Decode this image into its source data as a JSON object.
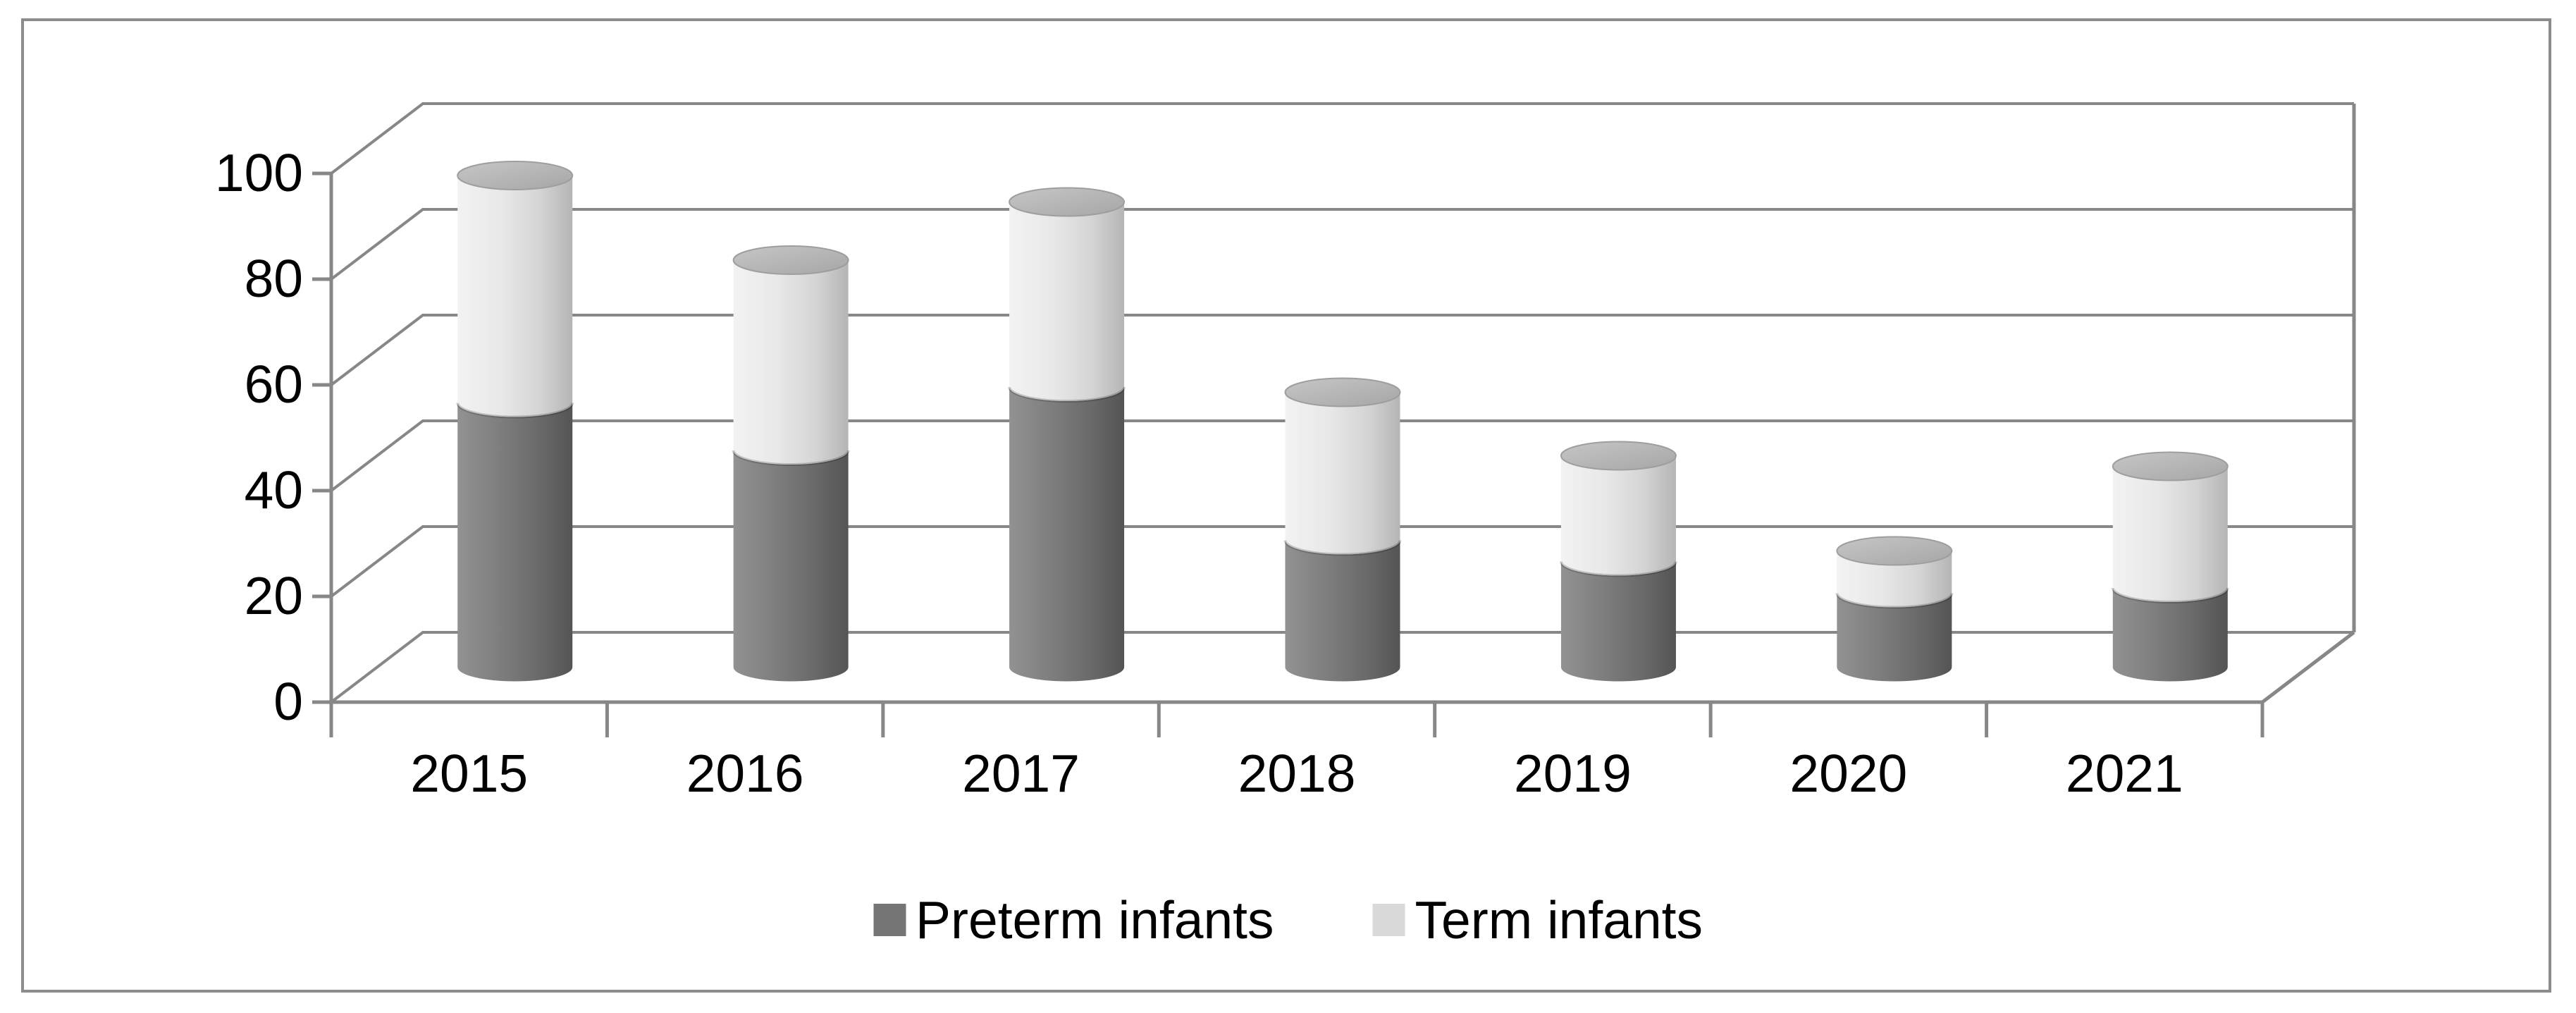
{
  "chart_data": {
    "type": "bar",
    "subtype": "3d-stacked-cylinder",
    "title": "",
    "xlabel": "",
    "ylabel": "",
    "categories": [
      "2015",
      "2016",
      "2017",
      "2018",
      "2019",
      "2020",
      "2021"
    ],
    "series": [
      {
        "name": "Preterm infants",
        "color": "#757575",
        "values": [
          50,
          41,
          53,
          24,
          20,
          14,
          15
        ]
      },
      {
        "name": "Term infants",
        "color": "#d9d9d9",
        "values": [
          43,
          36,
          35,
          28,
          20,
          8,
          23
        ]
      }
    ],
    "ylim": [
      0,
      100
    ],
    "yticks": [
      0,
      20,
      40,
      60,
      80,
      100
    ],
    "grid": true,
    "legend_position": "bottom",
    "colors": {
      "gridline": "#878787",
      "axis": "#878787",
      "frame_border": "#8c8c8c",
      "text": "#000000",
      "dark_body_light_edge": "#929292",
      "dark_body_dark_edge": "#545454",
      "light_body_light_edge": "#f2f2f2",
      "light_body_dark_edge": "#b5b5b5",
      "cap_light": "#c6c6c6",
      "cap_dark": "#a6a6a6"
    }
  }
}
